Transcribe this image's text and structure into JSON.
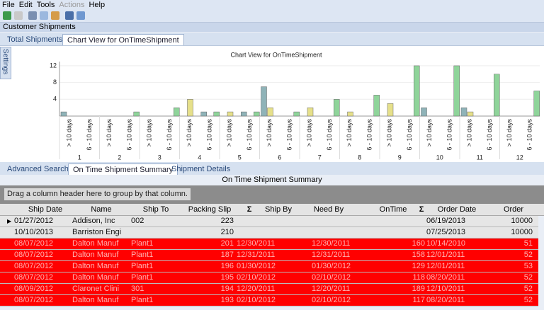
{
  "menu": [
    "File",
    "Edit",
    "Tools",
    "Actions",
    "Help"
  ],
  "window_title": "Customer Shipments",
  "top_tabs": [
    "Total Shipments",
    "Chart View for OnTimeShipment"
  ],
  "side_tab": "Settings",
  "chart_data": {
    "type": "bar",
    "title": "Chart View for OnTimeShipment",
    "categories": [
      "> 10 days",
      "6 - 10 days",
      "> 10 days",
      "6 - 10 days",
      "> 10 days",
      "6 - 10 days",
      "> 10 days",
      "6 - 10 days",
      "> 10 days",
      "6 - 10 days",
      "> 10 days",
      "6 - 10 days",
      "> 10 days",
      "6 - 10 days",
      "> 10 days",
      "6 - 10 days",
      "> 10 days",
      "6 - 10 days",
      "> 10 days",
      "6 - 10 days",
      "> 10 days",
      "6 - 10 days",
      "> 10 days",
      "6 - 10 days"
    ],
    "groups": [
      "1",
      "2",
      "3",
      "4",
      "5",
      "6",
      "7",
      "8",
      "9",
      "10",
      "11",
      "12"
    ],
    "series": [
      {
        "color": "#8fb3b8",
        "values": [
          1,
          null,
          null,
          null,
          null,
          null,
          null,
          1,
          null,
          1,
          7,
          null,
          null,
          null,
          null,
          null,
          null,
          null,
          2,
          null,
          2,
          null,
          null,
          null
        ]
      },
      {
        "color": "#e6e08a",
        "values": [
          null,
          null,
          null,
          null,
          null,
          null,
          4,
          null,
          1,
          null,
          2,
          null,
          2,
          null,
          1,
          null,
          3,
          null,
          null,
          null,
          1,
          null,
          null,
          null
        ]
      },
      {
        "color": "#8fd49a",
        "values": [
          null,
          null,
          null,
          1,
          null,
          2,
          null,
          1,
          null,
          1,
          null,
          1,
          null,
          4,
          null,
          5,
          null,
          12,
          null,
          12,
          null,
          10,
          null,
          6
        ]
      }
    ],
    "ylim": [
      0,
      13
    ],
    "yticks": [
      4,
      8,
      12
    ],
    "grid": true
  },
  "bottom_tabs": [
    "Advanced Search",
    "On Time Shipment Summary",
    "Shipment Details"
  ],
  "grid": {
    "title": "On Time Shipment Summary",
    "group_hint": "Drag a column header here to group by that column.",
    "columns": [
      "Ship Date",
      "Name",
      "Ship To",
      "Packing Slip",
      "Σ",
      "Ship By",
      "Need By",
      "OnTime",
      "Σ",
      "Order Date",
      "Order"
    ],
    "rows": [
      [
        "01/27/2012",
        "Addison, Inc",
        "002",
        223,
        null,
        null,
        null,
        "06/19/2013",
        10000
      ],
      [
        "10/10/2013",
        "Barriston Engi",
        null,
        210,
        null,
        null,
        null,
        "07/25/2013",
        10000
      ],
      [
        "08/07/2012",
        "Dalton Manuf",
        "Plant1",
        201,
        "12/30/2011",
        "12/30/2011",
        160,
        "10/14/2010",
        51
      ],
      [
        "08/07/2012",
        "Dalton Manuf",
        "Plant1",
        187,
        "12/31/2011",
        "12/31/2011",
        158,
        "12/01/2011",
        52
      ],
      [
        "08/07/2012",
        "Dalton Manuf",
        "Plant1",
        196,
        "01/30/2012",
        "01/30/2012",
        129,
        "12/01/2011",
        53
      ],
      [
        "08/07/2012",
        "Dalton Manuf",
        "Plant1",
        195,
        "02/10/2012",
        "02/10/2012",
        118,
        "08/20/2011",
        52
      ],
      [
        "08/09/2012",
        "Claronet Clini",
        "301",
        194,
        "12/20/2011",
        "12/20/2011",
        189,
        "12/10/2011",
        52
      ],
      [
        "08/07/2012",
        "Dalton Manuf",
        "Plant1",
        193,
        "02/10/2012",
        "02/10/2012",
        117,
        "08/20/2011",
        52
      ]
    ]
  }
}
